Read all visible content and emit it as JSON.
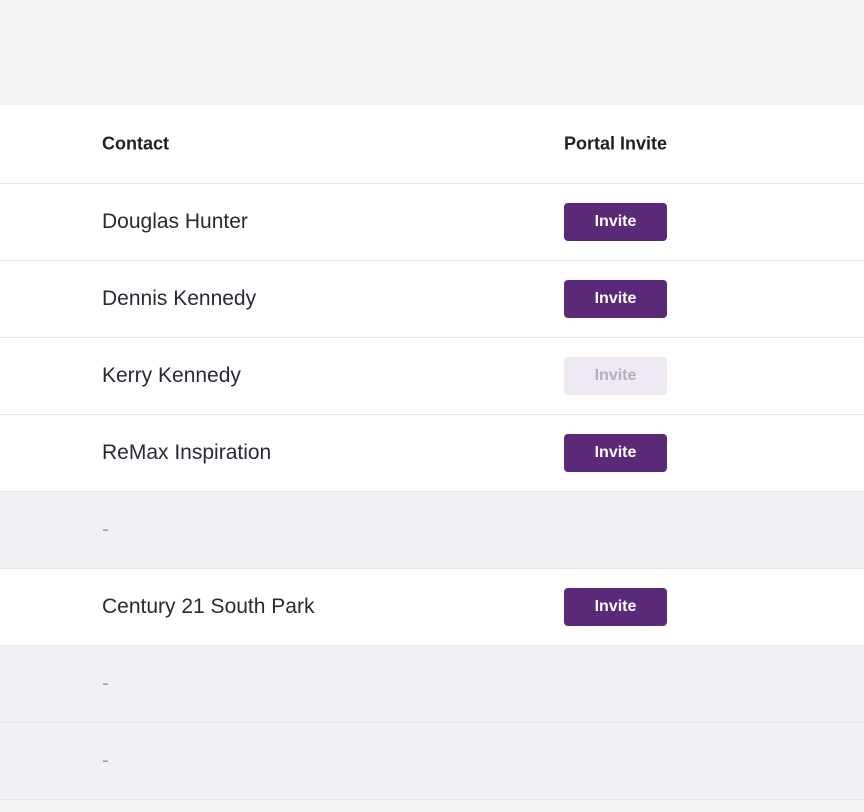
{
  "table": {
    "headers": {
      "contact": "Contact",
      "portal_invite": "Portal Invite"
    },
    "rows": [
      {
        "contact": "Douglas Hunter",
        "invite_label": "Invite",
        "state": "enabled"
      },
      {
        "contact": "Dennis Kennedy",
        "invite_label": "Invite",
        "state": "enabled"
      },
      {
        "contact": "Kerry Kennedy",
        "invite_label": "Invite",
        "state": "disabled"
      },
      {
        "contact": "ReMax Inspiration",
        "invite_label": "Invite",
        "state": "enabled"
      },
      {
        "contact": "-",
        "invite_label": "",
        "state": "empty"
      },
      {
        "contact": "Century 21 South Park",
        "invite_label": "Invite",
        "state": "enabled"
      },
      {
        "contact": "-",
        "invite_label": "",
        "state": "empty"
      },
      {
        "contact": "-",
        "invite_label": "",
        "state": "empty"
      }
    ]
  },
  "colors": {
    "accent": "#5a2a78",
    "accent_disabled_bg": "#efe9f3",
    "accent_disabled_text": "#b9a8c5",
    "empty_row_bg": "#f0f1f4"
  }
}
